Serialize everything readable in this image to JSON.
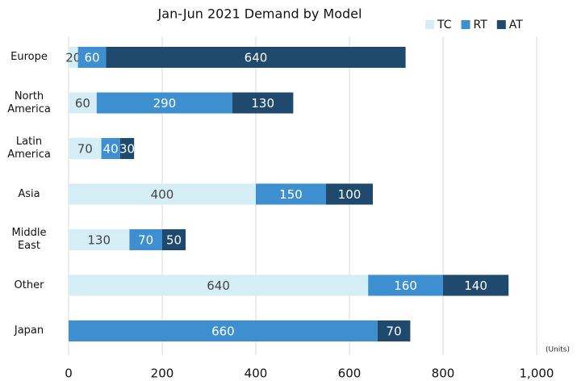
{
  "chart_data": {
    "type": "stacked_barh",
    "title": "Jan-Jun 2021 Demand by Model",
    "categories": [
      "Europe",
      "North America",
      "Latin America",
      "Asia",
      "Middle East",
      "Other",
      "Japan"
    ],
    "series": [
      {
        "name": "TC",
        "color": "#d5eef5",
        "values": [
          20,
          60,
          70,
          400,
          130,
          640,
          null
        ]
      },
      {
        "name": "RT",
        "color": "#3e8fd0",
        "values": [
          60,
          290,
          40,
          150,
          70,
          160,
          660
        ]
      },
      {
        "name": "AT",
        "color": "#1f4a6e",
        "values": [
          640,
          130,
          30,
          100,
          50,
          140,
          70
        ]
      }
    ],
    "xlim": [
      0,
      1000
    ],
    "xticks": [
      0,
      200,
      400,
      600,
      800,
      {
        "value": 1000,
        "label": "1,000"
      }
    ],
    "x_unit_label": "(Units)",
    "grid": true,
    "legend": "top-right"
  }
}
